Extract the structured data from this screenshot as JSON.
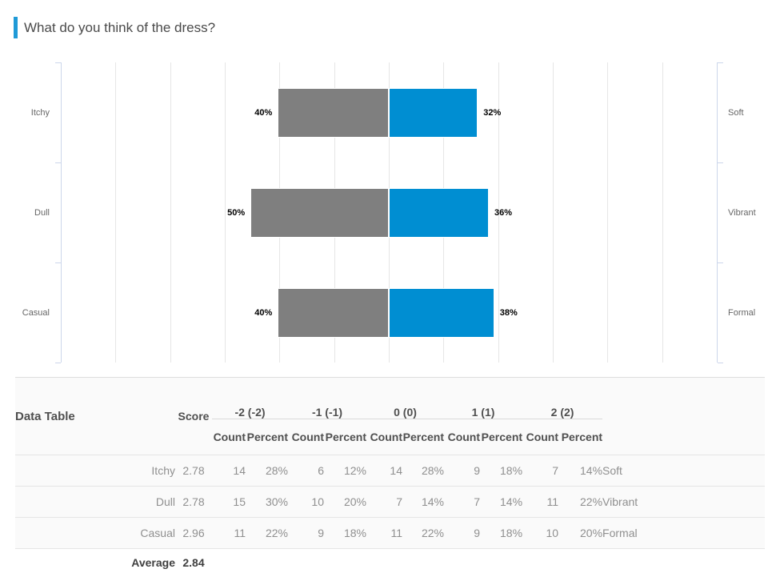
{
  "header": {
    "title": "What do you think of the dress?",
    "accent_color": "#1f9ad7"
  },
  "chart_data": {
    "type": "bar",
    "variant": "diverging-horizontal",
    "categories_left": [
      "Itchy",
      "Dull",
      "Casual"
    ],
    "categories_right": [
      "Soft",
      "Vibrant",
      "Formal"
    ],
    "series": [
      {
        "name": "negative-side",
        "color": "#7f7f7f",
        "values_percent": [
          40,
          50,
          40
        ],
        "labels": [
          "40%",
          "50%",
          "40%"
        ]
      },
      {
        "name": "positive-side",
        "color": "#008ed2",
        "values_percent": [
          32,
          36,
          38
        ],
        "labels": [
          "32%",
          "36%",
          "38%"
        ]
      }
    ],
    "xlim_percent": [
      -120,
      120
    ],
    "grid_step_percent": 20,
    "grid": "on",
    "legend": "none",
    "axis_color": "#ccd6eb",
    "grid_color": "#e6e6e6"
  },
  "table": {
    "title": "Data Table",
    "score_header": "Score",
    "group_headers": [
      "-2 (-2)",
      "-1 (-1)",
      "0 (0)",
      "1 (1)",
      "2 (2)"
    ],
    "sub_headers": [
      "Count",
      "Percent"
    ],
    "rows": [
      {
        "label": "Itchy",
        "score": "2.78",
        "cells": [
          "14",
          "28%",
          "6",
          "12%",
          "14",
          "28%",
          "9",
          "18%",
          "7",
          "14%"
        ],
        "right_label": "Soft"
      },
      {
        "label": "Dull",
        "score": "2.78",
        "cells": [
          "15",
          "30%",
          "10",
          "20%",
          "7",
          "14%",
          "7",
          "14%",
          "11",
          "22%"
        ],
        "right_label": "Vibrant"
      },
      {
        "label": "Casual",
        "score": "2.96",
        "cells": [
          "11",
          "22%",
          "9",
          "18%",
          "11",
          "22%",
          "9",
          "18%",
          "10",
          "20%"
        ],
        "right_label": "Formal"
      }
    ],
    "average": {
      "label": "Average",
      "score": "2.84"
    }
  }
}
